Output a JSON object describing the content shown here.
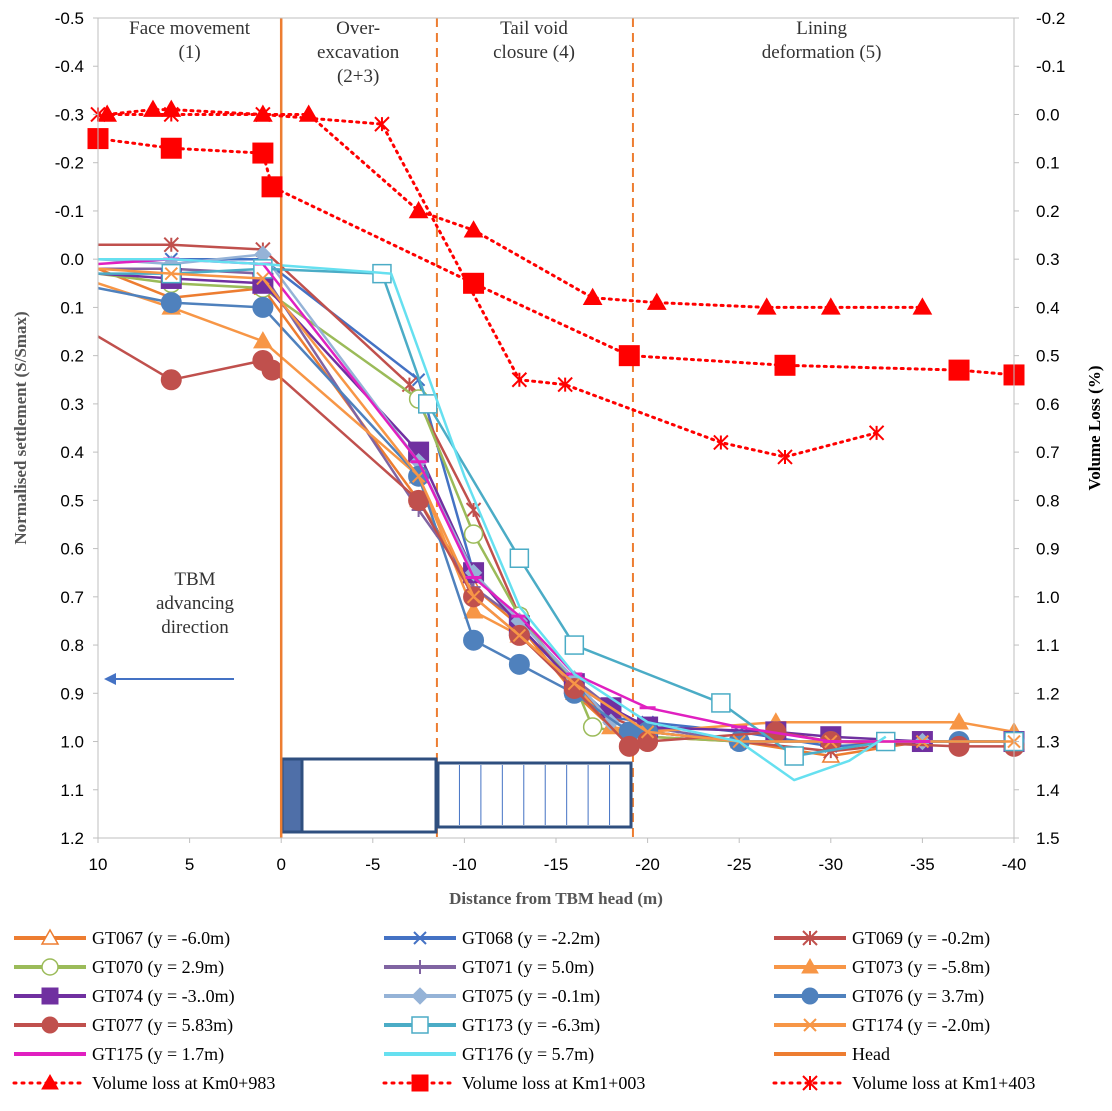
{
  "chart_data": {
    "type": "line",
    "xlabel": "Distance from TBM head (m)",
    "ylabel": "Normalised settlement (S/Smax)",
    "y2label": "Volume Loss (%)",
    "xlim": [
      10,
      -40
    ],
    "ylim": [
      -0.5,
      1.2
    ],
    "y2lim": [
      -0.2,
      1.5
    ],
    "x_ticks": [
      "10",
      "5",
      "0",
      "-5",
      "-10",
      "-15",
      "-20",
      "-25",
      "-30",
      "-35",
      "-40"
    ],
    "y_ticks": [
      "-0.5",
      "-0.4",
      "-0.3",
      "-0.2",
      "-0.1",
      "0.0",
      "0.1",
      "0.2",
      "0.3",
      "0.4",
      "0.5",
      "0.6",
      "0.7",
      "0.8",
      "0.9",
      "1.0",
      "1.1",
      "1.2"
    ],
    "y2_ticks": [
      "-0.2",
      "-0.1",
      "0.0",
      "0.1",
      "0.2",
      "0.3",
      "0.4",
      "0.5",
      "0.6",
      "0.7",
      "0.8",
      "0.9",
      "1.0",
      "1.1",
      "1.2",
      "1.3",
      "1.4",
      "1.5"
    ],
    "stages": [
      {
        "lines": [
          "Face movement",
          "(1)"
        ],
        "x": 5
      },
      {
        "lines": [
          "Over-",
          "excavation",
          "(2+3)"
        ],
        "x": -4.2
      },
      {
        "lines": [
          "Tail void",
          "closure (4)"
        ],
        "x": -13.8
      },
      {
        "lines": [
          "Lining",
          "deformation (5)"
        ],
        "x": -29.5
      }
    ],
    "stage_boundaries": [
      -8.5,
      -19.2
    ],
    "annotation": {
      "lines": [
        "TBM",
        "advancing",
        "direction"
      ]
    },
    "series": [
      {
        "name": "GT067 (y = -6.0m)",
        "color": "#ED7D31",
        "marker": "triangle-open",
        "dash": "solid",
        "axis": "left",
        "x": [
          10,
          6,
          1,
          -7.5,
          -10.5,
          -13,
          -16,
          -18,
          -20,
          -25,
          -30,
          -35,
          -40
        ],
        "y": [
          0.02,
          0.08,
          0.06,
          0.5,
          0.68,
          0.76,
          0.9,
          0.97,
          0.99,
          1.0,
          1.03,
          1.0,
          1.0
        ]
      },
      {
        "name": "GT068 (y = -2.2m)",
        "color": "#4472C4",
        "marker": "x",
        "dash": "solid",
        "axis": "left",
        "x": [
          10,
          6,
          1,
          -7.5,
          -10.5,
          -13,
          -16,
          -18,
          -20,
          -25,
          -30,
          -35,
          -40
        ],
        "y": [
          0.0,
          0.0,
          0.0,
          0.25,
          0.65,
          0.76,
          0.88,
          0.95,
          0.96,
          0.98,
          1.01,
          1.0,
          1.0
        ]
      },
      {
        "name": "GT069 (y = -0.2m)",
        "color": "#C0504D",
        "marker": "asterisk",
        "dash": "solid",
        "axis": "left",
        "x": [
          10,
          6,
          1,
          -7,
          -10.5,
          -13,
          -16,
          -18,
          -20,
          -25,
          -30,
          -35,
          -40
        ],
        "y": [
          -0.03,
          -0.03,
          -0.02,
          0.26,
          0.52,
          0.74,
          0.89,
          0.95,
          0.98,
          1.0,
          1.02,
          1.0,
          1.0
        ]
      },
      {
        "name": "GT070 (y = 2.9m)",
        "color": "#9BBB59",
        "marker": "circle-open",
        "dash": "solid",
        "axis": "left",
        "x": [
          10,
          6,
          1,
          -7.5,
          -10.5,
          -13,
          -16,
          -17,
          -20,
          -25,
          -30,
          -35,
          -40
        ],
        "y": [
          0.03,
          0.05,
          0.06,
          0.29,
          0.57,
          0.74,
          0.88,
          0.97,
          0.99,
          1.0,
          1.0,
          1.0,
          1.0
        ]
      },
      {
        "name": "GT071 (y = 5.0m)",
        "color": "#8064A2",
        "marker": "plus",
        "dash": "solid",
        "axis": "left",
        "x": [
          10,
          6,
          1,
          -7.5,
          -10.5,
          -13,
          -16,
          -18,
          -20,
          -25,
          -30,
          -35,
          -40
        ],
        "y": [
          0.02,
          0.02,
          0.03,
          0.52,
          0.68,
          0.75,
          0.87,
          0.93,
          0.97,
          1.0,
          1.0,
          1.0,
          1.0
        ]
      },
      {
        "name": "GT073 (y = -5.8m)",
        "color": "#F79646",
        "marker": "triangle",
        "dash": "solid",
        "axis": "left",
        "x": [
          10,
          6,
          1,
          -7.5,
          -10.5,
          -13,
          -16,
          -18,
          -20,
          -27,
          -37,
          -40
        ],
        "y": [
          0.05,
          0.1,
          0.17,
          0.45,
          0.73,
          0.78,
          0.88,
          0.97,
          0.98,
          0.96,
          0.96,
          0.98
        ]
      },
      {
        "name": "GT074 (y = -3..0m)",
        "color": "#7030A0",
        "marker": "square",
        "dash": "solid",
        "axis": "left",
        "x": [
          10,
          6,
          1,
          -7.5,
          -10.5,
          -13,
          -16,
          -18,
          -20,
          -27,
          -30,
          -35,
          -40
        ],
        "y": [
          0.03,
          0.04,
          0.05,
          0.4,
          0.65,
          0.76,
          0.88,
          0.93,
          0.97,
          0.98,
          0.99,
          1.0,
          1.0
        ]
      },
      {
        "name": "GT075 (y = -0.1m)",
        "color": "#95B3D7",
        "marker": "diamond",
        "dash": "solid",
        "axis": "left",
        "x": [
          10,
          6,
          1,
          -7.5,
          -10.5,
          -13,
          -16,
          -18,
          -20,
          -25,
          -30,
          -35,
          -40
        ],
        "y": [
          0.0,
          0.01,
          -0.01,
          0.42,
          0.65,
          0.75,
          0.87,
          0.96,
          0.98,
          1.0,
          1.0,
          1.0,
          1.0
        ]
      },
      {
        "name": "GT076 (y = 3.7m)",
        "color": "#4F81BD",
        "marker": "circle",
        "dash": "solid",
        "axis": "left",
        "x": [
          10,
          6,
          1,
          -7.5,
          -10.5,
          -13,
          -16,
          -19,
          -20,
          -25,
          -30,
          -37,
          -40
        ],
        "y": [
          0.06,
          0.09,
          0.1,
          0.45,
          0.79,
          0.84,
          0.9,
          0.98,
          0.98,
          1.0,
          1.0,
          1.0,
          1.0
        ]
      },
      {
        "name": "GT077 (y = 5.83m)",
        "color": "#C0504D",
        "marker": "circle",
        "dash": "solid",
        "axis": "left",
        "x": [
          10,
          6,
          1,
          0.5,
          -7.5,
          -10.5,
          -13,
          -16,
          -19,
          -20,
          -27,
          -30,
          -37,
          -40
        ],
        "y": [
          0.16,
          0.25,
          0.21,
          0.23,
          0.5,
          0.7,
          0.78,
          0.89,
          1.01,
          1.0,
          0.98,
          1.0,
          1.01,
          1.01
        ]
      },
      {
        "name": "GT173 (y = -6.3m)",
        "color": "#4BACC6",
        "marker": "square-open",
        "dash": "solid",
        "axis": "left",
        "x": [
          10,
          6,
          1,
          -5.5,
          -8,
          -13,
          -16,
          -24,
          -28,
          -33,
          -40
        ],
        "y": [
          0.03,
          0.03,
          0.02,
          0.03,
          0.3,
          0.62,
          0.8,
          0.92,
          1.03,
          1.0,
          1.0
        ]
      },
      {
        "name": "GT174 (y = -2.0m)",
        "color": "#F79646",
        "marker": "x",
        "dash": "solid",
        "axis": "left",
        "x": [
          10,
          6,
          1,
          -7.5,
          -10.5,
          -13,
          -16,
          -20,
          -25,
          -30,
          -35,
          -40
        ],
        "y": [
          0.02,
          0.03,
          0.04,
          0.45,
          0.7,
          0.78,
          0.88,
          0.98,
          1.0,
          1.0,
          1.0,
          1.0
        ]
      },
      {
        "name": "GT175 (y = 1.7m)",
        "color": "#E020C0",
        "marker": "dash",
        "dash": "solid",
        "axis": "left",
        "x": [
          10,
          6,
          1,
          -7.5,
          -10.5,
          -13,
          -16,
          -20,
          -25,
          -30,
          -35
        ],
        "y": [
          0.01,
          0.0,
          0.01,
          0.42,
          0.66,
          0.74,
          0.86,
          0.93,
          0.97,
          1.0,
          1.0
        ]
      },
      {
        "name": "GT176 (y = 5.7m)",
        "color": "#66E0F0",
        "marker": "none",
        "dash": "solid",
        "axis": "left",
        "x": [
          10,
          6,
          1,
          -6,
          -10,
          -13,
          -16,
          -20,
          -25,
          -28,
          -31,
          -33
        ],
        "y": [
          0.0,
          0.0,
          0.01,
          0.03,
          0.45,
          0.72,
          0.86,
          0.96,
          1.0,
          1.08,
          1.04,
          0.99
        ]
      },
      {
        "name": "Head",
        "color": "#ED7D31",
        "marker": "none",
        "dash": "solid",
        "axis": "left",
        "x": [
          0,
          0
        ],
        "y": [
          -0.5,
          1.2
        ]
      },
      {
        "name": "Volume loss at Km0+983",
        "color": "#FF0000",
        "marker": "triangle",
        "dash": "dotted",
        "axis": "right",
        "x": [
          9.5,
          7,
          6,
          1,
          -1.5,
          -7.5,
          -10.5,
          -17,
          -20.5,
          -26.5,
          -30,
          -35
        ],
        "y": [
          0.0,
          -0.01,
          -0.01,
          0.0,
          0.0,
          0.2,
          0.24,
          0.38,
          0.39,
          0.4,
          0.4,
          0.4
        ]
      },
      {
        "name": "Volume loss at Km1+003",
        "color": "#FF0000",
        "marker": "square",
        "dash": "dotted",
        "axis": "right",
        "x": [
          10,
          6,
          1,
          0.5,
          -10.5,
          -19,
          -27.5,
          -37,
          -40
        ],
        "y": [
          0.05,
          0.07,
          0.08,
          0.15,
          0.35,
          0.5,
          0.52,
          0.53,
          0.54
        ]
      },
      {
        "name": "Volume loss at Km1+403",
        "color": "#FF0000",
        "marker": "asterisk",
        "dash": "dotted",
        "axis": "right",
        "x": [
          10,
          6,
          1,
          -5.5,
          -13,
          -15.5,
          -24,
          -27.5,
          -32.5
        ],
        "y": [
          0.0,
          0.0,
          0.0,
          0.02,
          0.55,
          0.56,
          0.68,
          0.71,
          0.66
        ]
      }
    ]
  }
}
